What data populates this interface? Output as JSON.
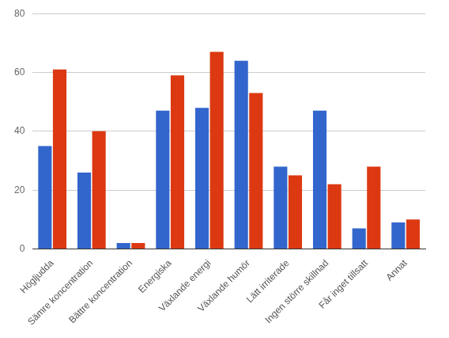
{
  "chart_data": {
    "type": "bar",
    "categories": [
      "Högljudda",
      "Sämre koncentration",
      "Bättre koncentration",
      "Energiska",
      "Växlande energi",
      "Växlande humör",
      "Lätt irriterade",
      "Ingen större skillnad",
      "Får inget tillsatt",
      "Annat"
    ],
    "series": [
      {
        "color": "#3366cc",
        "values": [
          35,
          26,
          2,
          47,
          48,
          64,
          28,
          47,
          7,
          9
        ]
      },
      {
        "color": "#dc3912",
        "values": [
          61,
          40,
          2,
          59,
          67,
          53,
          25,
          22,
          28,
          10
        ]
      }
    ],
    "ylim": [
      0,
      80
    ],
    "yticks": [
      0,
      20,
      40,
      60,
      80
    ],
    "grid": true
  }
}
